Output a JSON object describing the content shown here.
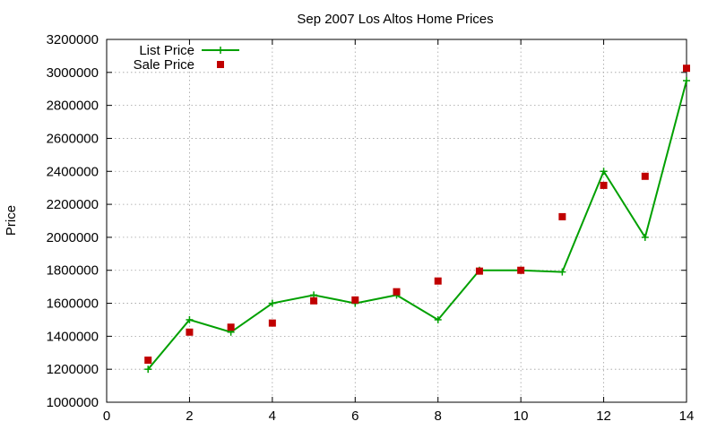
{
  "chart_data": {
    "type": "line",
    "title": "Sep 2007 Los Altos Home Prices",
    "xlabel": "",
    "ylabel": "Price",
    "xlim": [
      0,
      14
    ],
    "ylim": [
      1000000,
      3200000
    ],
    "xticks": [
      0,
      2,
      4,
      6,
      8,
      10,
      12,
      14
    ],
    "yticks": [
      1000000,
      1200000,
      1400000,
      1600000,
      1800000,
      2000000,
      2200000,
      2400000,
      2600000,
      2800000,
      3000000,
      3200000
    ],
    "grid": true,
    "legend": "top-left",
    "series": [
      {
        "name": "List Price",
        "style": "line+cross",
        "color": "#00a000",
        "x": [
          1,
          2,
          3,
          4,
          5,
          6,
          7,
          8,
          9,
          10,
          11,
          12,
          13,
          14
        ],
        "y": [
          1200000,
          1500000,
          1425000,
          1600000,
          1650000,
          1600000,
          1650000,
          1500000,
          1800000,
          1800000,
          1790000,
          2400000,
          2000000,
          2950000
        ]
      },
      {
        "name": "Sale Price",
        "style": "square-points",
        "color": "#c00000",
        "x": [
          1,
          2,
          3,
          4,
          5,
          6,
          7,
          8,
          9,
          10,
          11,
          12,
          13,
          14
        ],
        "y": [
          1255000,
          1425000,
          1455000,
          1480000,
          1615000,
          1620000,
          1670000,
          1735000,
          1795000,
          1800000,
          2125000,
          2315000,
          2370000,
          3025000
        ]
      }
    ]
  }
}
